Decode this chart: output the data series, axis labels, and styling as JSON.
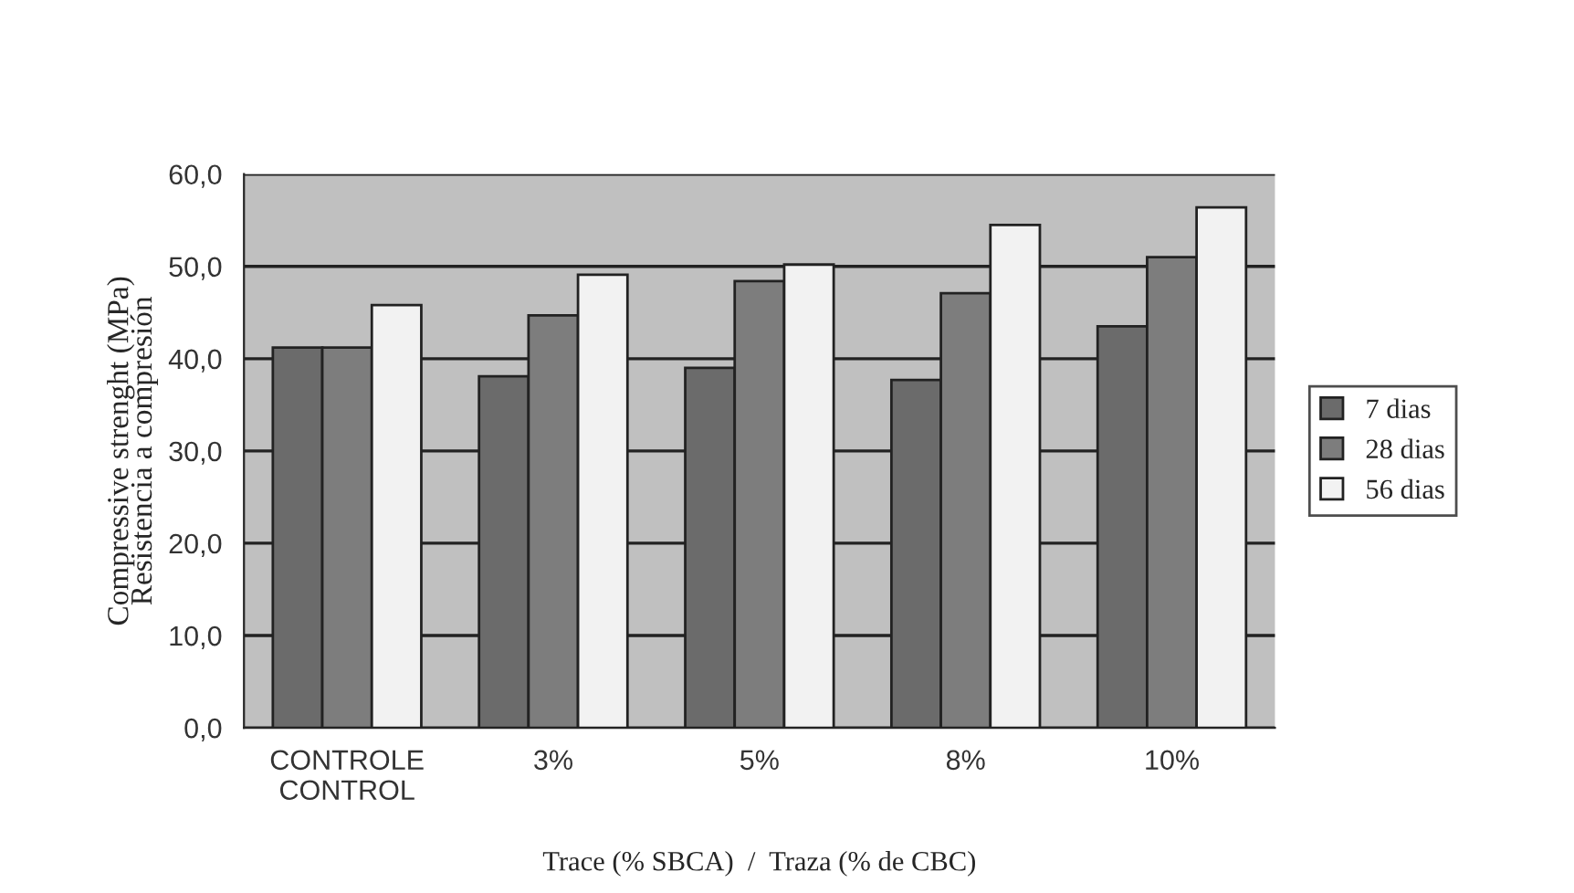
{
  "chart_data": {
    "type": "bar",
    "xlabel": "Trace (% SBCA)  /  Traza (% de CBC)",
    "ylabel": "Compressive strenght (MPa)\nResistencia a compresión",
    "categories": [
      "CONTROLE\nCONTROL",
      "3%",
      "5%",
      "8%",
      "10%"
    ],
    "series": [
      {
        "name": "7 dias",
        "color": "#6b6b6b",
        "values": [
          41.2,
          38.1,
          39.0,
          37.7,
          43.5
        ]
      },
      {
        "name": "28 dias",
        "color": "#7d7d7d",
        "values": [
          41.2,
          44.7,
          48.4,
          47.1,
          51.0
        ]
      },
      {
        "name": "56 dias",
        "color": "#f2f2f2",
        "values": [
          45.8,
          49.1,
          50.2,
          54.5,
          56.4
        ]
      }
    ],
    "ylim": [
      0,
      60
    ],
    "yticks": [
      {
        "value": 0,
        "label": "0,0"
      },
      {
        "value": 10,
        "label": "10,0"
      },
      {
        "value": 20,
        "label": "20,0"
      },
      {
        "value": 30,
        "label": "30,0"
      },
      {
        "value": 40,
        "label": "40,0"
      },
      {
        "value": 50,
        "label": "50,0"
      },
      {
        "value": 60,
        "label": "60,0"
      }
    ],
    "grid": "y",
    "legend": "right"
  }
}
